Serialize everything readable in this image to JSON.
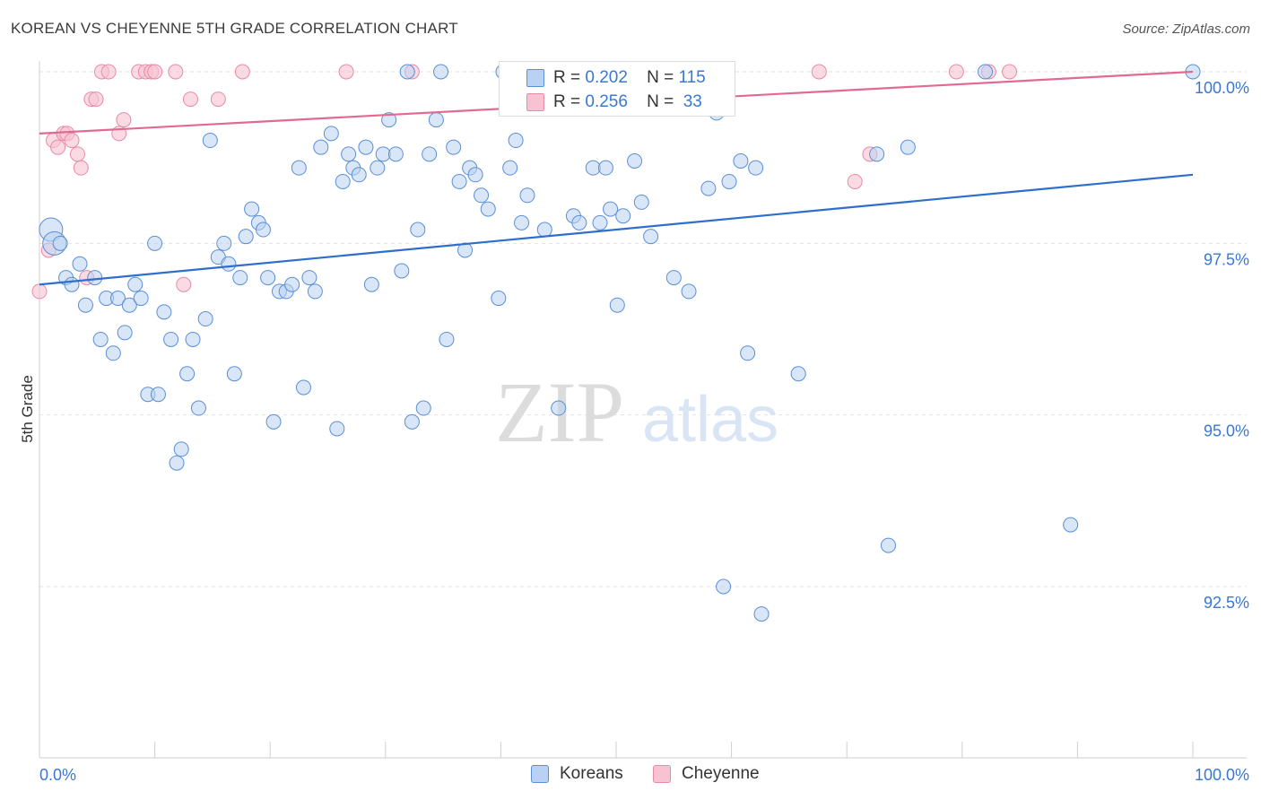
{
  "title": "KOREAN VS CHEYENNE 5TH GRADE CORRELATION CHART",
  "source": "Source: ZipAtlas.com",
  "watermark": {
    "zip": "ZIP",
    "atlas": "atlas"
  },
  "colors": {
    "korean_fill": "#b9d2f3",
    "korean_stroke": "#5b8fd6",
    "korean_line": "#2f6fcc",
    "cheyenne_fill": "#f7c3d2",
    "cheyenne_stroke": "#e88aa8",
    "cheyenne_line": "#e06b92",
    "tick_label": "#3a78d2",
    "grid": "#e2e2e2"
  },
  "stats": {
    "r_label": "R =",
    "n_label": "N =",
    "koreans": {
      "r": "0.202",
      "n": "115"
    },
    "cheyenne": {
      "r": "0.256",
      "n": "33"
    }
  },
  "legend": {
    "koreans": "Koreans",
    "cheyenne": "Cheyenne"
  },
  "chart_data": {
    "type": "scatter",
    "title": "KOREAN VS CHEYENNE 5TH GRADE CORRELATION CHART",
    "xlabel": "",
    "ylabel": "5th Grade",
    "xlim": [
      0,
      100
    ],
    "ylim": [
      90.3,
      100.5
    ],
    "x_tick_labels": [
      "0.0%",
      "100.0%"
    ],
    "y_ticks": [
      92.5,
      95.0,
      97.5,
      100.0
    ],
    "y_tick_labels": [
      "92.5%",
      "95.0%",
      "97.5%",
      "100.0%"
    ],
    "grid": true,
    "legend_position": "bottom",
    "series": [
      {
        "name": "Koreans",
        "trend": {
          "x": [
            0,
            100
          ],
          "y": [
            96.9,
            98.5
          ]
        },
        "points": [
          [
            1.0,
            97.7
          ],
          [
            1.3,
            97.5
          ],
          [
            1.8,
            97.5
          ],
          [
            2.3,
            97.0
          ],
          [
            2.8,
            96.9
          ],
          [
            3.5,
            97.2
          ],
          [
            4.0,
            96.6
          ],
          [
            4.8,
            97.0
          ],
          [
            5.3,
            96.1
          ],
          [
            5.8,
            96.7
          ],
          [
            6.4,
            95.9
          ],
          [
            6.8,
            96.7
          ],
          [
            7.4,
            96.2
          ],
          [
            7.8,
            96.6
          ],
          [
            8.3,
            96.9
          ],
          [
            8.8,
            96.7
          ],
          [
            9.4,
            95.3
          ],
          [
            10.0,
            97.5
          ],
          [
            10.3,
            95.3
          ],
          [
            10.8,
            96.5
          ],
          [
            11.4,
            96.1
          ],
          [
            11.9,
            94.3
          ],
          [
            12.3,
            94.5
          ],
          [
            12.8,
            95.6
          ],
          [
            13.3,
            96.1
          ],
          [
            13.8,
            95.1
          ],
          [
            14.4,
            96.4
          ],
          [
            14.8,
            99.0
          ],
          [
            15.5,
            97.3
          ],
          [
            16.0,
            97.5
          ],
          [
            16.4,
            97.2
          ],
          [
            16.9,
            95.6
          ],
          [
            17.4,
            97.0
          ],
          [
            17.9,
            97.6
          ],
          [
            18.4,
            98.0
          ],
          [
            19.0,
            97.8
          ],
          [
            19.4,
            97.7
          ],
          [
            19.8,
            97.0
          ],
          [
            20.3,
            94.9
          ],
          [
            20.8,
            96.8
          ],
          [
            21.4,
            96.8
          ],
          [
            21.9,
            96.9
          ],
          [
            22.5,
            98.6
          ],
          [
            22.9,
            95.4
          ],
          [
            23.4,
            97.0
          ],
          [
            23.9,
            96.8
          ],
          [
            24.4,
            98.9
          ],
          [
            25.3,
            99.1
          ],
          [
            25.8,
            94.8
          ],
          [
            26.3,
            98.4
          ],
          [
            26.8,
            98.8
          ],
          [
            27.2,
            98.6
          ],
          [
            27.7,
            98.5
          ],
          [
            28.3,
            98.9
          ],
          [
            28.8,
            96.9
          ],
          [
            29.3,
            98.6
          ],
          [
            29.8,
            98.8
          ],
          [
            30.3,
            99.3
          ],
          [
            30.9,
            98.8
          ],
          [
            31.4,
            97.1
          ],
          [
            31.9,
            100.0
          ],
          [
            32.3,
            94.9
          ],
          [
            32.8,
            97.7
          ],
          [
            33.3,
            95.1
          ],
          [
            33.8,
            98.8
          ],
          [
            34.4,
            99.3
          ],
          [
            34.8,
            100.0
          ],
          [
            35.3,
            96.1
          ],
          [
            35.9,
            98.9
          ],
          [
            36.4,
            98.4
          ],
          [
            36.9,
            97.4
          ],
          [
            37.3,
            98.6
          ],
          [
            37.8,
            98.5
          ],
          [
            38.3,
            98.2
          ],
          [
            38.9,
            98.0
          ],
          [
            39.8,
            96.7
          ],
          [
            40.2,
            100.0
          ],
          [
            40.8,
            98.6
          ],
          [
            41.3,
            99.0
          ],
          [
            41.8,
            97.8
          ],
          [
            42.3,
            98.2
          ],
          [
            43.8,
            97.7
          ],
          [
            45.0,
            95.1
          ],
          [
            45.3,
            100.0
          ],
          [
            46.3,
            97.9
          ],
          [
            46.8,
            97.8
          ],
          [
            48.0,
            98.6
          ],
          [
            48.6,
            97.8
          ],
          [
            49.1,
            98.6
          ],
          [
            49.5,
            98.0
          ],
          [
            50.1,
            96.6
          ],
          [
            50.6,
            97.9
          ],
          [
            51.0,
            100.0
          ],
          [
            51.6,
            98.7
          ],
          [
            52.2,
            98.1
          ],
          [
            53.0,
            97.6
          ],
          [
            53.9,
            100.0
          ],
          [
            55.0,
            97.0
          ],
          [
            56.3,
            96.8
          ],
          [
            58.0,
            98.3
          ],
          [
            58.7,
            99.4
          ],
          [
            59.3,
            92.5
          ],
          [
            59.8,
            98.4
          ],
          [
            60.8,
            98.7
          ],
          [
            61.4,
            95.9
          ],
          [
            62.1,
            98.6
          ],
          [
            62.6,
            92.1
          ],
          [
            65.8,
            95.6
          ],
          [
            72.6,
            98.8
          ],
          [
            73.6,
            93.1
          ],
          [
            75.3,
            98.9
          ],
          [
            82.0,
            100.0
          ],
          [
            89.4,
            93.4
          ],
          [
            100.0,
            100.0
          ]
        ],
        "point_sizes": {
          "large_at_x": [
            1.0,
            1.3
          ]
        }
      },
      {
        "name": "Cheyenne",
        "trend": {
          "x": [
            0,
            100
          ],
          "y": [
            99.1,
            100.0
          ]
        },
        "points": [
          [
            0.0,
            96.8
          ],
          [
            0.8,
            97.4
          ],
          [
            1.2,
            99.0
          ],
          [
            1.6,
            98.9
          ],
          [
            2.1,
            99.1
          ],
          [
            2.4,
            99.1
          ],
          [
            2.8,
            99.0
          ],
          [
            3.3,
            98.8
          ],
          [
            3.6,
            98.6
          ],
          [
            4.1,
            97.0
          ],
          [
            4.5,
            99.6
          ],
          [
            4.9,
            99.6
          ],
          [
            5.4,
            100.0
          ],
          [
            6.0,
            100.0
          ],
          [
            6.9,
            99.1
          ],
          [
            7.3,
            99.3
          ],
          [
            8.6,
            100.0
          ],
          [
            9.2,
            100.0
          ],
          [
            9.7,
            100.0
          ],
          [
            10.0,
            100.0
          ],
          [
            11.8,
            100.0
          ],
          [
            12.5,
            96.9
          ],
          [
            13.1,
            99.6
          ],
          [
            15.5,
            99.6
          ],
          [
            17.6,
            100.0
          ],
          [
            26.6,
            100.0
          ],
          [
            32.3,
            100.0
          ],
          [
            67.6,
            100.0
          ],
          [
            70.7,
            98.4
          ],
          [
            72.0,
            98.8
          ],
          [
            79.5,
            100.0
          ],
          [
            82.3,
            100.0
          ],
          [
            84.1,
            100.0
          ]
        ]
      }
    ]
  }
}
